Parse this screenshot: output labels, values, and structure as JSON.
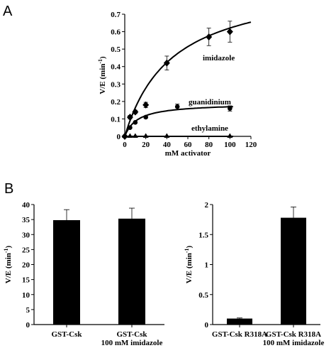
{
  "panels": {
    "a_label": "A",
    "b_label": "B"
  },
  "chart_data": [
    {
      "type": "scatter",
      "id": "A",
      "xlabel": "mM activator",
      "ylabel": "V/E (min",
      "ylabel_sup": "-1",
      "ylabel_end": ")",
      "xlim": [
        0,
        120
      ],
      "ylim": [
        0,
        0.7
      ],
      "xticks": [
        "0",
        "20",
        "40",
        "60",
        "80",
        "100",
        "120"
      ],
      "yticks": [
        "0",
        "0.1",
        "0.2",
        "0.3",
        "0.4",
        "0.5",
        "0.6",
        "0.7"
      ],
      "series": [
        {
          "name": "imidazole",
          "marker": "diamond",
          "x": [
            0,
            5,
            10,
            20,
            40,
            80,
            100
          ],
          "y": [
            0,
            0.11,
            0.14,
            0.18,
            0.42,
            0.57,
            0.6
          ],
          "err": [
            0,
            0.01,
            0.01,
            0.015,
            0.04,
            0.05,
            0.06
          ],
          "fit": {
            "vmax": 0.9,
            "km": 45
          }
        },
        {
          "name": "guanidinium",
          "marker": "circle",
          "x": [
            0,
            5,
            10,
            20,
            50,
            100
          ],
          "y": [
            0,
            0.05,
            0.08,
            0.11,
            0.17,
            0.16
          ],
          "err": [
            0,
            0.005,
            0.005,
            0.005,
            0.015,
            0.015
          ],
          "fit": {
            "vmax": 0.19,
            "km": 12
          }
        },
        {
          "name": "ethylamine",
          "marker": "triangle",
          "x": [
            0,
            5,
            10,
            20,
            40,
            100
          ],
          "y": [
            0,
            0.0,
            0.0,
            0.0,
            0.0,
            0.0
          ],
          "err": [
            0,
            0,
            0,
            0,
            0,
            0
          ],
          "fit": {
            "vmax": 0.0,
            "km": 1
          }
        }
      ]
    },
    {
      "type": "bar",
      "id": "B-left",
      "categories": [
        "GST-Csk",
        "GST-Csk"
      ],
      "categories_line2": [
        "",
        "100 mM imidazole"
      ],
      "values": [
        34.8,
        35.3
      ],
      "err": [
        3.5,
        3.5
      ],
      "ylabel": "V/E (min",
      "ylabel_sup": "-1",
      "ylabel_end": ")",
      "ylim": [
        0,
        40
      ],
      "yticks": [
        "0",
        "5",
        "10",
        "15",
        "20",
        "25",
        "30",
        "35",
        "40"
      ]
    },
    {
      "type": "bar",
      "id": "B-right",
      "categories": [
        "GST-Csk R318A",
        "GST-Csk R318A"
      ],
      "categories_line2": [
        "",
        "100 mM imidazole"
      ],
      "values": [
        0.1,
        1.78
      ],
      "err": [
        0.01,
        0.18
      ],
      "ylabel": "V/E (min",
      "ylabel_sup": "-1",
      "ylabel_end": ")",
      "ylim": [
        0,
        2
      ],
      "yticks": [
        "0",
        "0.5",
        "1",
        "1.5",
        "2"
      ]
    }
  ]
}
